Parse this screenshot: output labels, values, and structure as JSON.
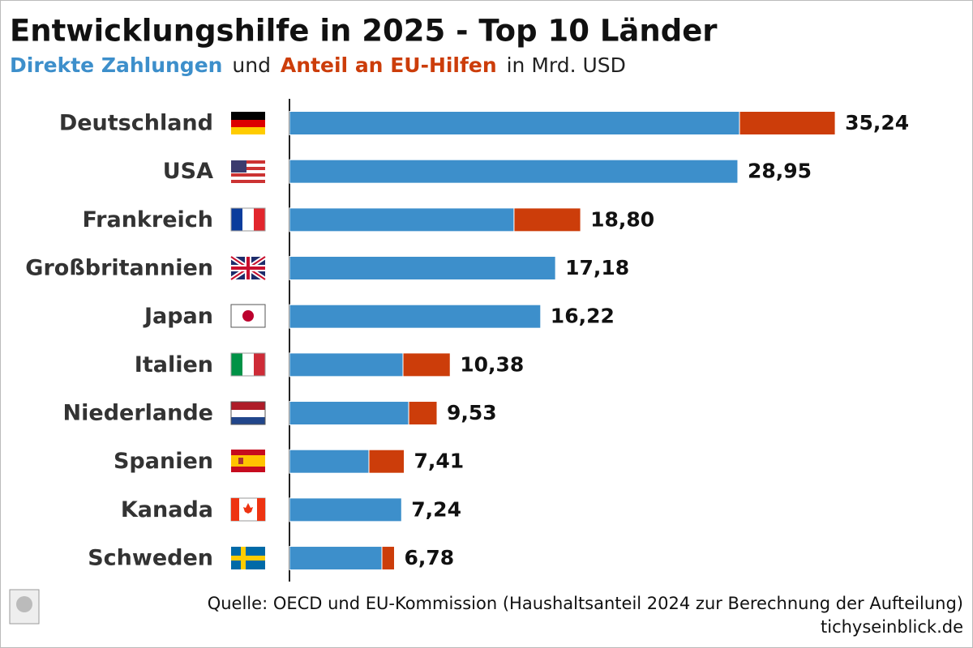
{
  "chart_data": {
    "type": "stacked-barh",
    "title": "Entwicklungshilfe in 2025 - Top 10 Länder",
    "subtitle_connector": "und",
    "subtitle_unit": "in Mrd. USD",
    "categories": [
      "Deutschland",
      "USA",
      "Frankreich",
      "Großbritannien",
      "Japan",
      "Italien",
      "Niederlande",
      "Spanien",
      "Kanada",
      "Schweden"
    ],
    "series": [
      {
        "name": "Direkte Zahlungen",
        "color": "#3d8fcb",
        "values": [
          29.06,
          28.95,
          14.5,
          17.18,
          16.22,
          7.33,
          7.7,
          5.13,
          7.24,
          5.97
        ]
      },
      {
        "name": "Anteil an EU-Hilfen",
        "color": "#cc3d0a",
        "values": [
          6.18,
          null,
          4.3,
          null,
          null,
          3.05,
          1.83,
          2.28,
          null,
          0.81
        ]
      }
    ],
    "totals": [
      35.24,
      28.95,
      18.8,
      17.18,
      16.22,
      10.38,
      9.53,
      7.41,
      7.24,
      6.78
    ],
    "total_labels": [
      "35,24",
      "28,95",
      "18,80",
      "17,18",
      "16,22",
      "10,38",
      "9,53",
      "7,41",
      "7,24",
      "6,78"
    ],
    "xlim": [
      0,
      40
    ],
    "source": "Quelle: OECD und EU-Kommission (Haushaltsanteil 2024 zur Berechnung der Aufteilung)",
    "website": "tichyseinblick.de"
  }
}
